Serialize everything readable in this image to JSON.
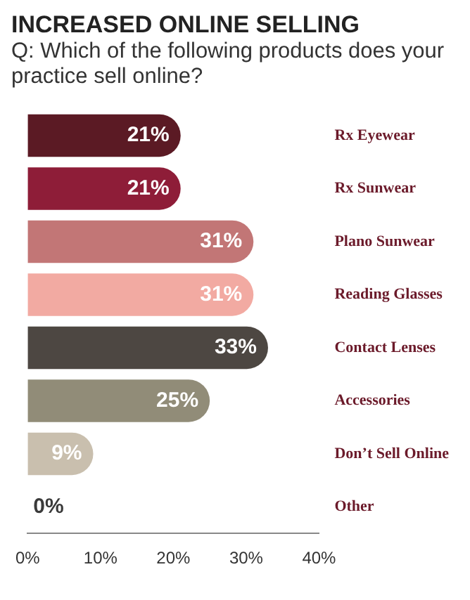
{
  "chart_data": {
    "type": "bar",
    "orientation": "horizontal",
    "title": "INCREASED ONLINE SELLING",
    "subtitle": "Q: Which of the following products does your practice sell online?",
    "categories": [
      "Rx Eyewear",
      "Rx Sunwear",
      "Plano Sunwear",
      "Reading Glasses",
      "Contact Lenses",
      "Accessories",
      "Don’t Sell Online",
      "Other"
    ],
    "values": [
      21,
      21,
      31,
      31,
      33,
      25,
      9,
      0
    ],
    "colors": [
      "#5b1a24",
      "#8e1d38",
      "#c27676",
      "#f2aaa2",
      "#4d4742",
      "#918c78",
      "#c9bfae",
      "#d8d8d8"
    ],
    "value_labels": [
      "21%",
      "21%",
      "31%",
      "31%",
      "33%",
      "25%",
      "9%",
      "0%"
    ],
    "xlim": [
      0,
      40
    ],
    "xticks": [
      {
        "value": 0,
        "label": "0%"
      },
      {
        "value": 10,
        "label": "10%"
      },
      {
        "value": 20,
        "label": "20%"
      },
      {
        "value": 30,
        "label": "30%"
      },
      {
        "value": 40,
        "label": "40%"
      }
    ],
    "grid": false,
    "legend": false
  }
}
